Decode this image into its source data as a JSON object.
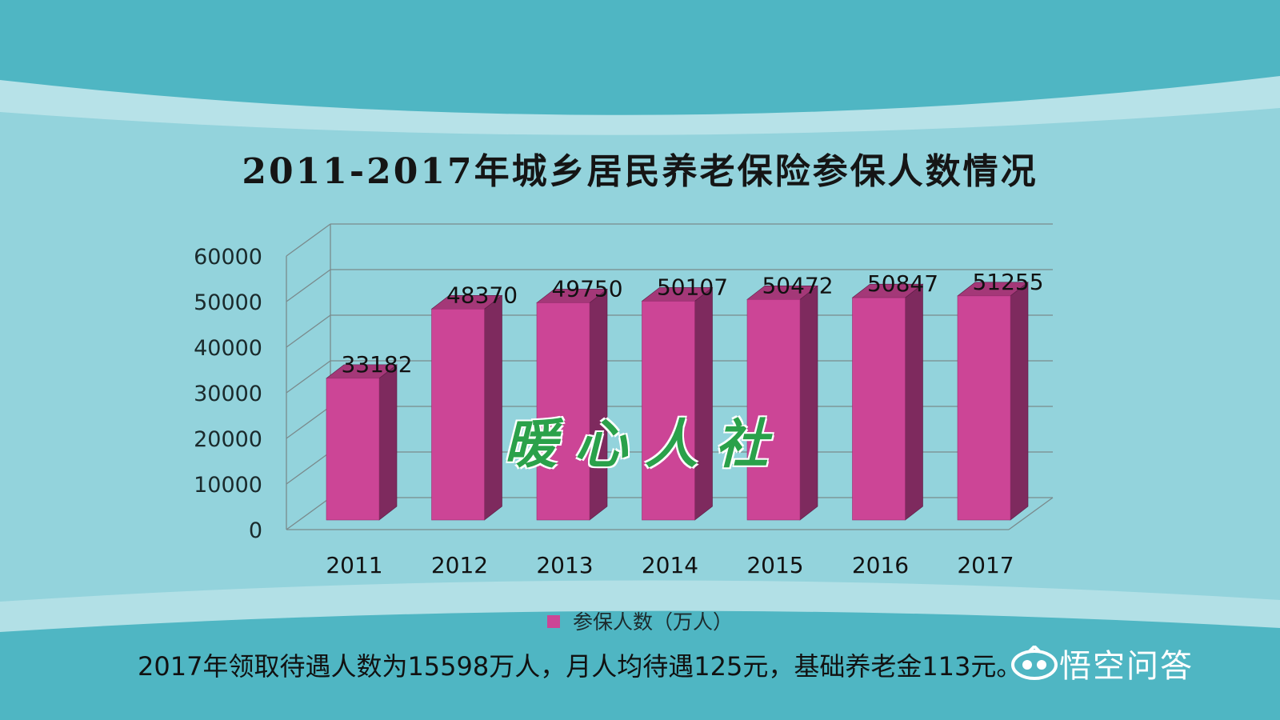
{
  "title": "2011-2017年城乡居民养老保险参保人数情况",
  "footnote": "2017年领取待遇人数为15598万人，月人均待遇125元，基础养老金113元。",
  "watermark": "暖心人社",
  "brand": {
    "text": "悟空问答",
    "icon": "wukong-logo-icon"
  },
  "colors": {
    "background": "#4fb6c3",
    "panel": "#93d3dc",
    "bar_front": "#cc4596",
    "bar_side": "#7e2a5e",
    "bar_top": "#a43878",
    "watermark": "#2aa14a"
  },
  "chart_data": {
    "type": "bar",
    "style": "3d-column",
    "categories": [
      "2011",
      "2012",
      "2013",
      "2014",
      "2015",
      "2016",
      "2017"
    ],
    "series": [
      {
        "name": "参保人数（万人）",
        "values": [
          33182,
          48370,
          49750,
          50107,
          50472,
          50847,
          51255
        ]
      }
    ],
    "y_ticks": [
      "0",
      "10000",
      "20000",
      "30000",
      "40000",
      "50000",
      "60000"
    ],
    "ylim": [
      0,
      60000
    ],
    "grid": true,
    "legend": "bottom-center",
    "data_labels": true
  }
}
